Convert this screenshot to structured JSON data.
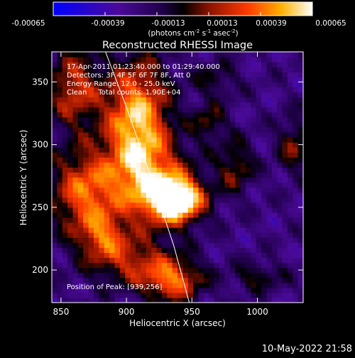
{
  "colorbar": {
    "tick_labels": [
      "-0.00065",
      "-0.00039",
      "-0.00013",
      "0.00013",
      "0.00039",
      "0.00065"
    ],
    "range": [
      -0.00065,
      0.00065
    ],
    "unit_main": "(photons cm",
    "unit_exp1": "-2",
    "unit_mid1": " s",
    "unit_exp2": "-1",
    "unit_mid2": " asec",
    "unit_exp3": "-2",
    "unit_end": ")"
  },
  "chart_data": {
    "type": "heatmap",
    "title": "Reconstructed RHESSI Image",
    "xlabel": "Heliocentric X (arcsec)",
    "ylabel": "Heliocentric Y (arcsec)",
    "xlim": [
      843,
      1035
    ],
    "ylim": [
      174,
      374
    ],
    "x_ticks": [
      850,
      900,
      950,
      1000
    ],
    "y_ticks": [
      200,
      250,
      300,
      350
    ],
    "annotations": [
      "17-Apr-2011 01:23:40.000 to 01:29:40.000",
      "Detectors: 3F 4F 5F 6F 7F 8F, Att 0",
      "Energy Range: 12.0 - 25.0 keV",
      "Clean     Total counts: 1.90E+04"
    ],
    "peak_label": "Position of Peak: [939,256]",
    "peak": [
      939,
      256
    ],
    "sources": [
      {
        "x": 908,
        "y": 318,
        "sx": 17,
        "sy": 34,
        "a": 1.0
      },
      {
        "x": 938,
        "y": 256,
        "sx": 14,
        "sy": 12,
        "a": 1.25
      },
      {
        "x": 920,
        "y": 268,
        "sx": 22,
        "sy": 22,
        "a": 0.65
      },
      {
        "x": 868,
        "y": 262,
        "sx": 18,
        "sy": 24,
        "a": 0.75
      },
      {
        "x": 860,
        "y": 345,
        "sx": 14,
        "sy": 22,
        "a": 0.6
      },
      {
        "x": 935,
        "y": 192,
        "sx": 16,
        "sy": 12,
        "a": 0.75
      },
      {
        "x": 902,
        "y": 208,
        "sx": 22,
        "sy": 14,
        "a": 0.5
      },
      {
        "x": 983,
        "y": 283,
        "sx": 10,
        "sy": 15,
        "a": 0.42
      },
      {
        "x": 963,
        "y": 318,
        "sx": 9,
        "sy": 10,
        "a": 0.38
      },
      {
        "x": 1028,
        "y": 300,
        "sx": 9,
        "sy": 16,
        "a": 0.4
      },
      {
        "x": 1000,
        "y": 195,
        "sx": 14,
        "sy": 8,
        "a": 0.32
      },
      {
        "x": 968,
        "y": 352,
        "sx": 12,
        "sy": 10,
        "a": 0.28
      },
      {
        "x": 882,
        "y": 228,
        "sx": 12,
        "sy": 12,
        "a": 0.5
      }
    ],
    "limb_curve": [
      [
        884,
        374
      ],
      [
        900,
        330
      ],
      [
        920,
        270
      ],
      [
        936,
        220
      ],
      [
        948,
        174
      ]
    ]
  },
  "timestamp": "10-May-2022 21:58"
}
